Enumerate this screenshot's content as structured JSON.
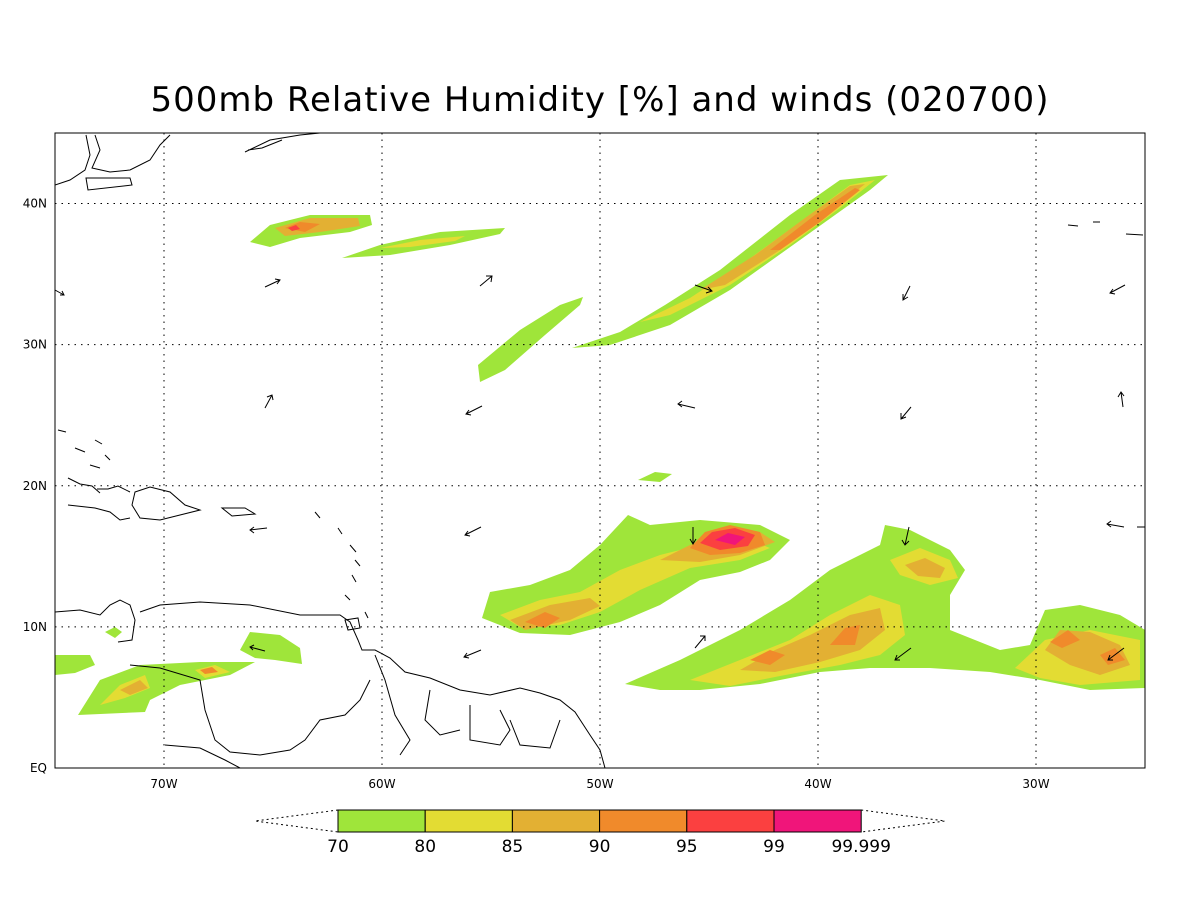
{
  "title": "500mb Relative Humidity [%] and winds (020700)",
  "map": {
    "lon_range": [
      -75,
      -25
    ],
    "lat_range": [
      0,
      45
    ],
    "lon_ticks": [
      {
        "value": -70,
        "label": "70W"
      },
      {
        "value": -60,
        "label": "60W"
      },
      {
        "value": -50,
        "label": "50W"
      },
      {
        "value": -40,
        "label": "40W"
      },
      {
        "value": -30,
        "label": "30W"
      }
    ],
    "lat_ticks": [
      {
        "value": 0,
        "label": "EQ"
      },
      {
        "value": 10,
        "label": "10N"
      },
      {
        "value": 20,
        "label": "20N"
      },
      {
        "value": 30,
        "label": "30N"
      },
      {
        "value": 40,
        "label": "40N"
      }
    ],
    "grid": "dotted"
  },
  "colorbar": {
    "levels": [
      "70",
      "80",
      "85",
      "90",
      "95",
      "99",
      "99.999"
    ],
    "colors": [
      "#9fe53a",
      "#e3dc33",
      "#e3b033",
      "#f08a2b",
      "#fb4040",
      "#f0157a"
    ]
  }
}
